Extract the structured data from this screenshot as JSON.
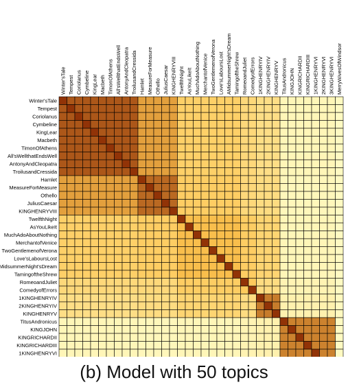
{
  "caption": "(b) Model with 50 topics",
  "chart_data": {
    "type": "heatmap",
    "title": "",
    "xlabel": "",
    "ylabel": "",
    "labels": [
      "Winter'sTale",
      "Tempest",
      "Coriolanus",
      "Cymbeline",
      "KingLear",
      "Macbeth",
      "TimonOfAthens",
      "All'sWellthatEndsWell",
      "AntonyAndCleopatra",
      "TroilusandCressida",
      "Hamlet",
      "MeasureForMeasure",
      "Othello",
      "JuliusCaesar",
      "KINGHENRYVIII",
      "TwelfthNight",
      "AsYouLikeIt",
      "MuchAdoAboutNothing",
      "MerchantofVenice",
      "TwoGentlemenofVerona",
      "Love'sLaboursLost",
      "AMidsummerNight'sDream",
      "TamingoftheShrew",
      "RomeoandJuliet",
      "ComedyofErrors",
      "1KINGHENRYIV",
      "2KINGHENRYIV",
      "KINGHENRYV",
      "TitusAndronicus",
      "KINGJOHN",
      "KINGRICHARDII",
      "KINGRICHARDIII",
      "1KINGHENRYVI",
      "2KINGHENRYVI",
      "3KINGHENRYVI",
      "MerryWivesOfWindsor"
    ],
    "groups": [
      {
        "start": 0,
        "end": 9,
        "diag": 0.98,
        "within": 0.86
      },
      {
        "start": 10,
        "end": 14,
        "diag": 0.98,
        "within": 0.8
      },
      {
        "start": 15,
        "end": 22,
        "diag": 0.98,
        "within": 0.52
      },
      {
        "start": 23,
        "end": 24,
        "diag": 0.98,
        "within": 0.45
      },
      {
        "start": 25,
        "end": 27,
        "diag": 0.98,
        "within": 0.74
      },
      {
        "start": 28,
        "end": 34,
        "diag": 0.98,
        "within": 0.72
      },
      {
        "start": 35,
        "end": 35,
        "diag": 0.98,
        "within": 0.98
      }
    ],
    "between": [
      [
        0,
        1,
        0.62
      ],
      [
        0,
        2,
        0.4
      ],
      [
        0,
        3,
        0.33
      ],
      [
        0,
        4,
        0.28
      ],
      [
        0,
        5,
        0.08
      ],
      [
        0,
        6,
        0.04
      ],
      [
        1,
        2,
        0.42
      ],
      [
        1,
        3,
        0.33
      ],
      [
        1,
        4,
        0.3
      ],
      [
        1,
        5,
        0.07
      ],
      [
        1,
        6,
        0.04
      ],
      [
        2,
        3,
        0.42
      ],
      [
        2,
        4,
        0.36
      ],
      [
        2,
        5,
        0.08
      ],
      [
        2,
        6,
        0.04
      ],
      [
        3,
        4,
        0.3
      ],
      [
        3,
        5,
        0.1
      ],
      [
        3,
        6,
        0.04
      ],
      [
        4,
        5,
        0.12
      ],
      [
        4,
        6,
        0.05
      ],
      [
        5,
        6,
        0.04
      ]
    ],
    "value_range": [
      0,
      1
    ],
    "colormap": {
      "low": "#ffffcc",
      "mid": "#fec44f",
      "high": "#8c2d04"
    },
    "grid": true,
    "legend": "none"
  }
}
